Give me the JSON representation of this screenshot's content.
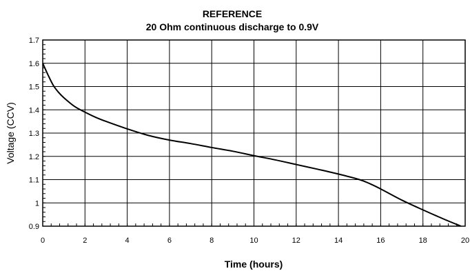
{
  "chart_data": {
    "type": "line",
    "title": "REFERENCE",
    "subtitle": "20 Ohm continuous discharge to 0.9V",
    "xlabel": "Time (hours)",
    "ylabel": "Voltage (CCV)",
    "xlim": [
      0,
      20
    ],
    "ylim": [
      0.9,
      1.7
    ],
    "x_ticks": [
      0,
      2,
      4,
      6,
      8,
      10,
      12,
      14,
      16,
      18,
      20
    ],
    "x_tick_labels": [
      "0",
      "2",
      "4",
      "6",
      "8",
      "10",
      "12",
      "14",
      "16",
      "18",
      "20"
    ],
    "y_ticks": [
      0.9,
      1.0,
      1.1,
      1.2,
      1.3,
      1.4,
      1.5,
      1.6,
      1.7
    ],
    "y_tick_labels": [
      "0.9",
      "1",
      "1.1",
      "1.2",
      "1.3",
      "1.4",
      "1.5",
      "1.6",
      "1.7"
    ],
    "grid": true,
    "series": [
      {
        "color": "#000000",
        "x": [
          0,
          0.25,
          0.5,
          0.75,
          1.0,
          1.5,
          2.0,
          2.5,
          3.0,
          4.0,
          5.0,
          6.0,
          7.0,
          8.0,
          9.0,
          10.0,
          11.0,
          12.0,
          13.0,
          14.0,
          15.0,
          15.5,
          16.0,
          17.0,
          18.0,
          19.0,
          19.8
        ],
        "y": [
          1.6,
          1.55,
          1.505,
          1.475,
          1.452,
          1.415,
          1.39,
          1.368,
          1.35,
          1.318,
          1.29,
          1.27,
          1.255,
          1.238,
          1.222,
          1.203,
          1.185,
          1.165,
          1.145,
          1.124,
          1.1,
          1.082,
          1.06,
          1.012,
          0.97,
          0.93,
          0.9
        ]
      }
    ]
  }
}
